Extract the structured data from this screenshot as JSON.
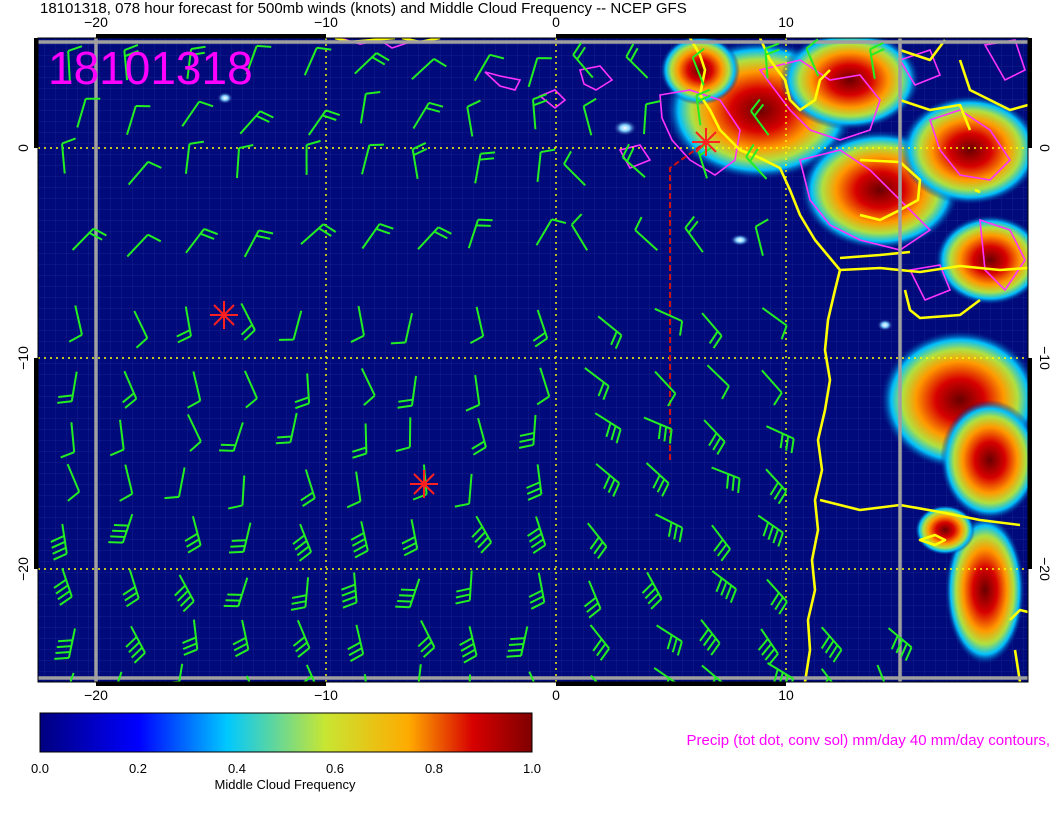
{
  "title": "18101318, 078 hour forecast for 500mb winds (knots) and Middle Cloud Frequency -- NCEP GFS",
  "timestamp_stamp": "18101318",
  "precip_label": "Precip (tot dot, conv sol) mm/day 40 mm/day contours,",
  "colorbar": {
    "label": "Middle Cloud Frequency",
    "ticks": [
      "0.0",
      "0.2",
      "0.4",
      "0.6",
      "0.8",
      "1.0"
    ],
    "colors": [
      "#00007f",
      "#0000ff",
      "#00c8ff",
      "#c8e632",
      "#ffaa00",
      "#d70000",
      "#7f0000"
    ]
  },
  "map": {
    "lon_ticks": [
      "−20",
      "−10",
      "0",
      "10"
    ],
    "lat_ticks": [
      "0",
      "−10",
      "−20"
    ],
    "colors": {
      "ocean": "#000a7a",
      "grid_fine": "#5a6ad0",
      "grid_dotted": "#ffff00",
      "coast": "#ffff00",
      "barb": "#22ee22",
      "precip_contour": "#ff33ff",
      "storm_marker": "#ff2020",
      "track": "#cc1111"
    }
  }
}
